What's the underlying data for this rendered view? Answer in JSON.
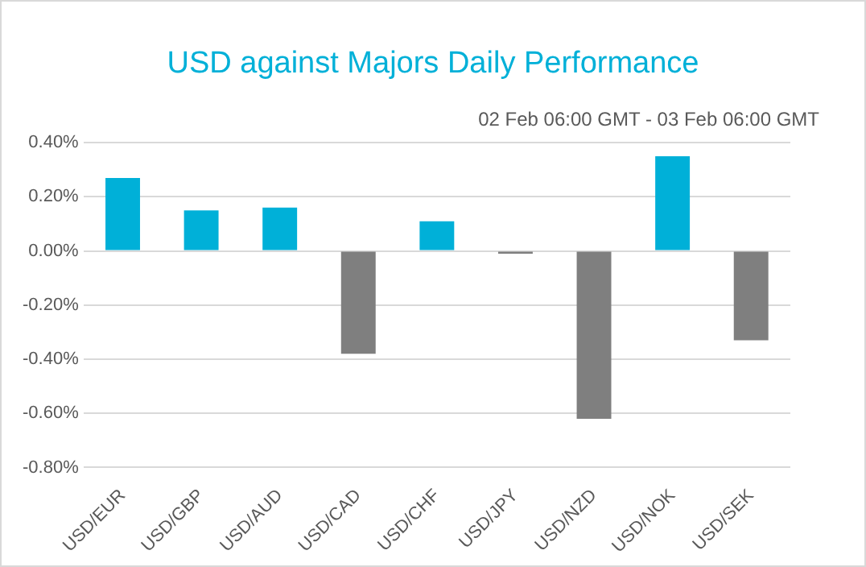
{
  "chart_data": {
    "type": "bar",
    "title": "USD against Majors Daily Performance",
    "subtitle": "02 Feb 06:00 GMT -  03 Feb  06:00 GMT",
    "categories": [
      "USD/EUR",
      "USD/GBP",
      "USD/AUD",
      "USD/CAD",
      "USD/CHF",
      "USD/JPY",
      "USD/NZD",
      "USD/NOK",
      "USD/SEK"
    ],
    "values": [
      0.27,
      0.15,
      0.16,
      -0.38,
      0.11,
      -0.01,
      -0.62,
      0.35,
      -0.33
    ],
    "colors": [
      "#00b0d8",
      "#00b0d8",
      "#00b0d8",
      "#7f7f7f",
      "#00b0d8",
      "#7f7f7f",
      "#7f7f7f",
      "#00b0d8",
      "#7f7f7f"
    ],
    "ylim": [
      -0.8,
      0.4
    ],
    "yticks": [
      {
        "value": -0.8,
        "label": "-0.80%"
      },
      {
        "value": -0.6,
        "label": "-0.60%"
      },
      {
        "value": -0.4,
        "label": "-0.40%"
      },
      {
        "value": -0.2,
        "label": "-0.20%"
      },
      {
        "value": 0,
        "label": "0.00%"
      },
      {
        "value": 0.2,
        "label": "0.20%"
      },
      {
        "value": 0.4,
        "label": "0.40%"
      }
    ],
    "grid": "y",
    "legend": false
  }
}
